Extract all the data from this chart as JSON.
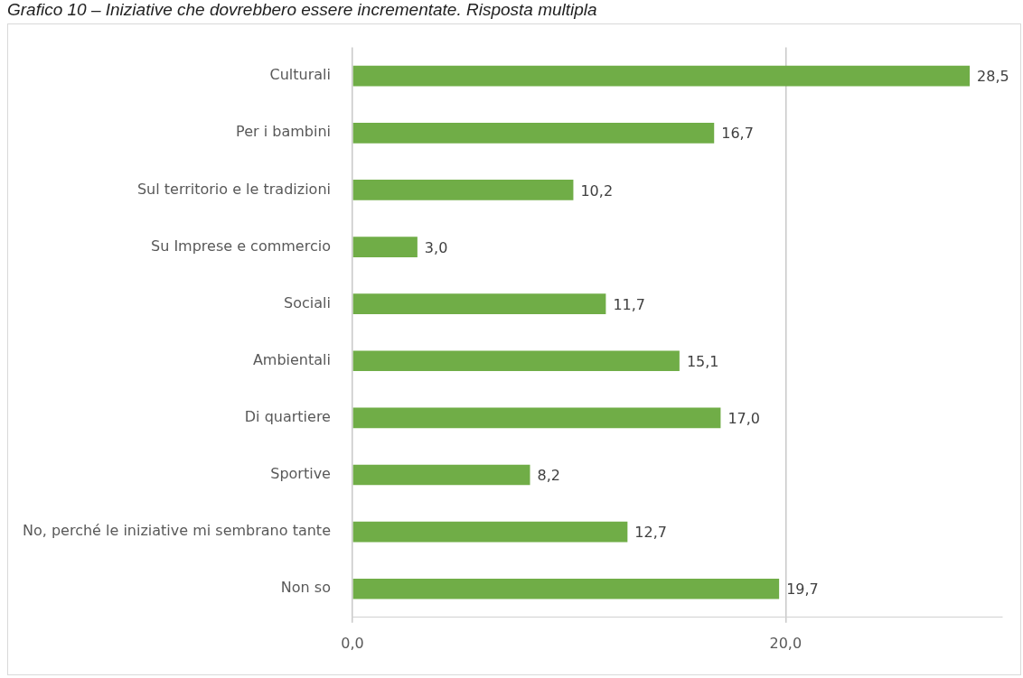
{
  "chart_data": {
    "type": "bar",
    "orientation": "horizontal",
    "title": "Grafico 10 – Iniziative che dovrebbero essere incrementate. Risposta multipla",
    "categories": [
      "Culturali",
      "Per i bambini",
      "Sul territorio e le tradizioni",
      "Su Imprese e commercio",
      "Sociali",
      "Ambientali",
      "Di quartiere",
      "Sportive",
      "No, perché le iniziative mi sembrano tante",
      "Non so"
    ],
    "values": [
      28.5,
      16.7,
      10.2,
      3.0,
      11.7,
      15.1,
      17.0,
      8.2,
      12.7,
      19.7
    ],
    "color": "#70ad47",
    "xlim": [
      0,
      30
    ],
    "xticks": [
      {
        "value": 0,
        "label": "0,0"
      },
      {
        "value": 20,
        "label": "20,0"
      }
    ],
    "grid": "x",
    "legend": false,
    "value_labels": [
      "28,5",
      "16,7",
      "10,2",
      "3,0",
      "11,7",
      "15,1",
      "17,0",
      "8,2",
      "12,7",
      "19,7"
    ]
  }
}
